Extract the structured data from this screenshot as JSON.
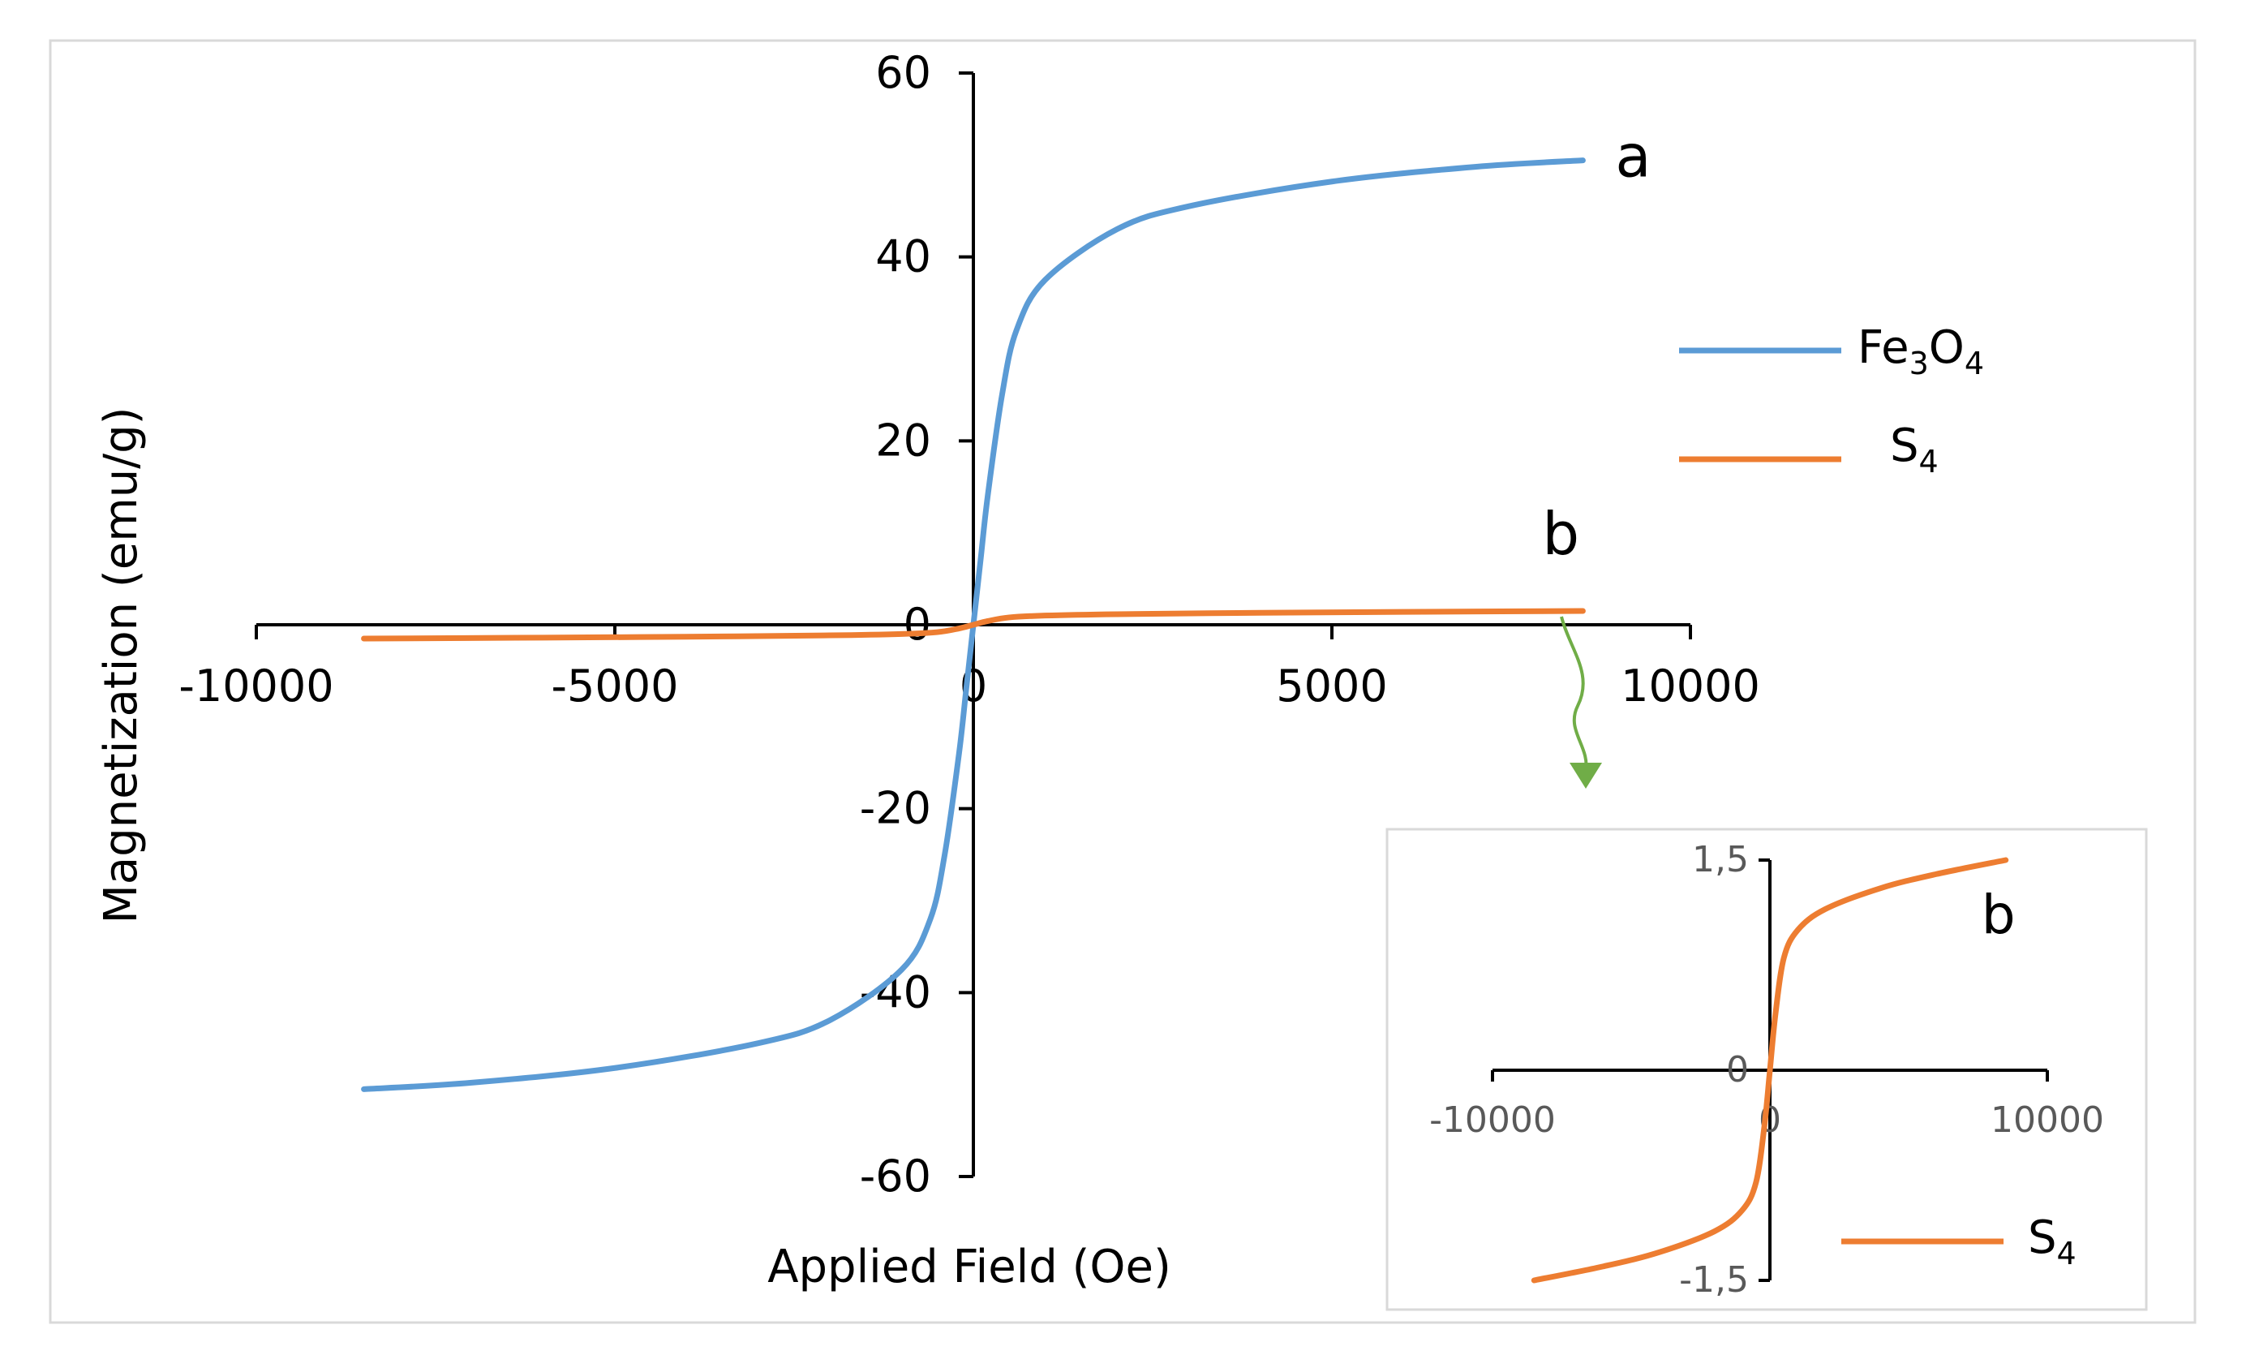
{
  "chart_data": [
    {
      "type": "line",
      "title": "",
      "xlabel": "Applied Field (Oe)",
      "ylabel": "Magnetization (emu/g)",
      "xlim": [
        -10000,
        10000
      ],
      "ylim": [
        -60,
        60
      ],
      "xticks": [
        "-10000",
        "-5000",
        "0",
        "5000",
        "10000"
      ],
      "yticks": [
        "60",
        "40",
        "20",
        "0",
        "-20",
        "-40",
        "-60"
      ],
      "legend": {
        "placement": "right",
        "entries": [
          {
            "base": "Fe",
            "sub1": "3",
            "mid": "O",
            "sub2": "4"
          },
          {
            "base": "S",
            "sub1": "4"
          }
        ]
      },
      "series": [
        {
          "name": "Fe3O4",
          "label": "a",
          "color": "#5b9bd5",
          "x": [
            -8500,
            -7000,
            -5000,
            -3000,
            -2000,
            -1000,
            -600,
            -400,
            -200,
            -100,
            0,
            100,
            200,
            400,
            600,
            1000,
            2000,
            3000,
            5000,
            7000,
            8500
          ],
          "y": [
            -50.5,
            -49.8,
            -48.2,
            -45.5,
            -43,
            -37.5,
            -32,
            -25,
            -14,
            -7,
            0,
            7,
            14,
            25,
            32,
            37.5,
            43,
            45.5,
            48.2,
            49.8,
            50.5
          ]
        },
        {
          "name": "S4",
          "label": "b",
          "color": "#ed7d31",
          "x": [
            -8500,
            -6000,
            -4000,
            -2000,
            -1000,
            -500,
            -200,
            0,
            200,
            500,
            1000,
            2000,
            4000,
            6000,
            8500
          ],
          "y": [
            -1.5,
            -1.4,
            -1.3,
            -1.15,
            -1.0,
            -0.8,
            -0.4,
            0,
            0.4,
            0.8,
            1.0,
            1.15,
            1.3,
            1.4,
            1.5
          ]
        }
      ]
    },
    {
      "type": "line",
      "title": "",
      "xlim": [
        -10000,
        10000
      ],
      "ylim": [
        -1.5,
        1.5
      ],
      "xticks": [
        "-10000",
        "0",
        "10000"
      ],
      "yticks": [
        "1,5",
        "0",
        "-1,5"
      ],
      "legend": {
        "placement": "bottom-right",
        "entries": [
          {
            "base": "S",
            "sub1": "4"
          }
        ]
      },
      "series": [
        {
          "name": "S4",
          "label": "b",
          "color": "#ed7d31",
          "x": [
            -8500,
            -6000,
            -4000,
            -2000,
            -1000,
            -500,
            -200,
            0,
            200,
            500,
            1000,
            2000,
            4000,
            6000,
            8500
          ],
          "y": [
            -1.5,
            -1.4,
            -1.3,
            -1.15,
            -1.0,
            -0.8,
            -0.4,
            0,
            0.4,
            0.8,
            1.0,
            1.15,
            1.3,
            1.4,
            1.5
          ]
        }
      ]
    }
  ]
}
